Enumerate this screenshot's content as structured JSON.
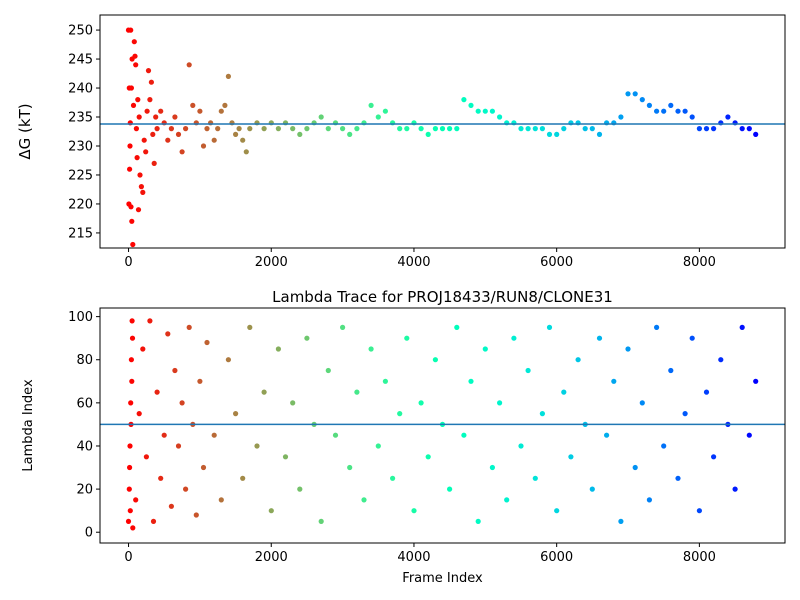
{
  "chart_data": [
    {
      "type": "scatter",
      "title": "",
      "xlabel": "",
      "ylabel": "ΔG (kT)",
      "xlim": [
        -400,
        9200
      ],
      "ylim": [
        212.4,
        252.6
      ],
      "xticks": [
        0,
        2000,
        4000,
        6000,
        8000
      ],
      "xtick_labels": [
        "0",
        "2000",
        "4000",
        "6000",
        "8000"
      ],
      "yticks": [
        215,
        220,
        225,
        230,
        235,
        240,
        245,
        250
      ],
      "ytick_labels": [
        "215",
        "220",
        "225",
        "230",
        "235",
        "240",
        "245",
        "250"
      ],
      "hline": 233.8,
      "colormap": "rainbow",
      "color_by": "frame index (red = early, violet = late)",
      "grid": false,
      "legend": "none",
      "series_points": [
        [
          0,
          250
        ],
        [
          30,
          250
        ],
        [
          10,
          240
        ],
        [
          40,
          240
        ],
        [
          20,
          230
        ],
        [
          5,
          220
        ],
        [
          35,
          219.5
        ],
        [
          50,
          245
        ],
        [
          15,
          226
        ],
        [
          45,
          217
        ],
        [
          60,
          213
        ],
        [
          25,
          234
        ],
        [
          80,
          248
        ],
        [
          90,
          245.5
        ],
        [
          100,
          244
        ],
        [
          70,
          237
        ],
        [
          110,
          233
        ],
        [
          130,
          238
        ],
        [
          150,
          235
        ],
        [
          120,
          228
        ],
        [
          160,
          225
        ],
        [
          140,
          219
        ],
        [
          180,
          223
        ],
        [
          200,
          222
        ],
        [
          220,
          231
        ],
        [
          240,
          229
        ],
        [
          260,
          236
        ],
        [
          280,
          243
        ],
        [
          300,
          238
        ],
        [
          320,
          241
        ],
        [
          340,
          232
        ],
        [
          360,
          227
        ],
        [
          380,
          235
        ],
        [
          400,
          233
        ],
        [
          450,
          236
        ],
        [
          500,
          234
        ],
        [
          550,
          231
        ],
        [
          600,
          233
        ],
        [
          650,
          235
        ],
        [
          700,
          232
        ],
        [
          750,
          229
        ],
        [
          800,
          233
        ],
        [
          850,
          244
        ],
        [
          900,
          237
        ],
        [
          950,
          234
        ],
        [
          1000,
          236
        ],
        [
          1050,
          230
        ],
        [
          1100,
          233
        ],
        [
          1150,
          234
        ],
        [
          1200,
          231
        ],
        [
          1250,
          233
        ],
        [
          1300,
          236
        ],
        [
          1350,
          237
        ],
        [
          1400,
          242
        ],
        [
          1450,
          234
        ],
        [
          1500,
          232
        ],
        [
          1550,
          233
        ],
        [
          1600,
          231
        ],
        [
          1650,
          229
        ],
        [
          1700,
          233
        ],
        [
          1800,
          234
        ],
        [
          1900,
          233
        ],
        [
          2000,
          234
        ],
        [
          2100,
          233
        ],
        [
          2200,
          234
        ],
        [
          2300,
          233
        ],
        [
          2400,
          232
        ],
        [
          2500,
          233
        ],
        [
          2600,
          234
        ],
        [
          2700,
          235
        ],
        [
          2800,
          233
        ],
        [
          2900,
          234
        ],
        [
          3000,
          233
        ],
        [
          3100,
          232
        ],
        [
          3200,
          233
        ],
        [
          3300,
          234
        ],
        [
          3400,
          237
        ],
        [
          3500,
          235
        ],
        [
          3600,
          236
        ],
        [
          3700,
          234
        ],
        [
          3800,
          233
        ],
        [
          3900,
          233
        ],
        [
          4000,
          234
        ],
        [
          4100,
          233
        ],
        [
          4200,
          232
        ],
        [
          4300,
          233
        ],
        [
          4400,
          233
        ],
        [
          4500,
          233
        ],
        [
          4600,
          233
        ],
        [
          4700,
          238
        ],
        [
          4800,
          237
        ],
        [
          4900,
          236
        ],
        [
          5000,
          236
        ],
        [
          5100,
          236
        ],
        [
          5200,
          235
        ],
        [
          5300,
          234
        ],
        [
          5400,
          234
        ],
        [
          5500,
          233
        ],
        [
          5600,
          233
        ],
        [
          5700,
          233
        ],
        [
          5800,
          233
        ],
        [
          5900,
          232
        ],
        [
          6000,
          232
        ],
        [
          6100,
          233
        ],
        [
          6200,
          234
        ],
        [
          6300,
          234
        ],
        [
          6400,
          233
        ],
        [
          6500,
          233
        ],
        [
          6600,
          232
        ],
        [
          6700,
          234
        ],
        [
          6800,
          234
        ],
        [
          6900,
          235
        ],
        [
          7000,
          239
        ],
        [
          7100,
          239
        ],
        [
          7200,
          238
        ],
        [
          7300,
          237
        ],
        [
          7400,
          236
        ],
        [
          7500,
          236
        ],
        [
          7600,
          237
        ],
        [
          7700,
          236
        ],
        [
          7800,
          236
        ],
        [
          7900,
          235
        ],
        [
          8000,
          233
        ],
        [
          8100,
          233
        ],
        [
          8200,
          233
        ],
        [
          8300,
          234
        ],
        [
          8400,
          235
        ],
        [
          8500,
          234
        ],
        [
          8600,
          233
        ],
        [
          8700,
          233
        ],
        [
          8790,
          232
        ]
      ]
    },
    {
      "type": "scatter",
      "title": "Lambda Trace for PROJ18433/RUN8/CLONE31",
      "xlabel": "Frame Index",
      "ylabel": "Lambda Index",
      "xlim": [
        -400,
        9200
      ],
      "ylim": [
        -5,
        104
      ],
      "xticks": [
        0,
        2000,
        4000,
        6000,
        8000
      ],
      "xtick_labels": [
        "0",
        "2000",
        "4000",
        "6000",
        "8000"
      ],
      "yticks": [
        0,
        20,
        40,
        60,
        80,
        100
      ],
      "ytick_labels": [
        "0",
        "20",
        "40",
        "60",
        "80",
        "100"
      ],
      "hline": 50,
      "colormap": "rainbow",
      "color_by": "frame index (red = early, violet = late)",
      "grid": false,
      "legend": "none",
      "series_points": [
        [
          0,
          5
        ],
        [
          10,
          20
        ],
        [
          20,
          40
        ],
        [
          30,
          60
        ],
        [
          40,
          80
        ],
        [
          50,
          98
        ],
        [
          15,
          30
        ],
        [
          25,
          10
        ],
        [
          35,
          50
        ],
        [
          45,
          70
        ],
        [
          55,
          90
        ],
        [
          60,
          2
        ],
        [
          100,
          15
        ],
        [
          150,
          55
        ],
        [
          200,
          85
        ],
        [
          250,
          35
        ],
        [
          300,
          98
        ],
        [
          350,
          5
        ],
        [
          400,
          65
        ],
        [
          450,
          25
        ],
        [
          500,
          45
        ],
        [
          550,
          92
        ],
        [
          600,
          12
        ],
        [
          650,
          75
        ],
        [
          700,
          40
        ],
        [
          750,
          60
        ],
        [
          800,
          20
        ],
        [
          850,
          95
        ],
        [
          900,
          50
        ],
        [
          950,
          8
        ],
        [
          1000,
          70
        ],
        [
          1050,
          30
        ],
        [
          1100,
          88
        ],
        [
          1200,
          45
        ],
        [
          1300,
          15
        ],
        [
          1400,
          80
        ],
        [
          1500,
          55
        ],
        [
          1600,
          25
        ],
        [
          1700,
          95
        ],
        [
          1800,
          40
        ],
        [
          1900,
          65
        ],
        [
          2000,
          10
        ],
        [
          2100,
          85
        ],
        [
          2200,
          35
        ],
        [
          2300,
          60
        ],
        [
          2400,
          20
        ],
        [
          2500,
          90
        ],
        [
          2600,
          50
        ],
        [
          2700,
          5
        ],
        [
          2800,
          75
        ],
        [
          2900,
          45
        ],
        [
          3000,
          95
        ],
        [
          3100,
          30
        ],
        [
          3200,
          65
        ],
        [
          3300,
          15
        ],
        [
          3400,
          85
        ],
        [
          3500,
          40
        ],
        [
          3600,
          70
        ],
        [
          3700,
          25
        ],
        [
          3800,
          55
        ],
        [
          3900,
          90
        ],
        [
          4000,
          10
        ],
        [
          4100,
          60
        ],
        [
          4200,
          35
        ],
        [
          4300,
          80
        ],
        [
          4400,
          50
        ],
        [
          4500,
          20
        ],
        [
          4600,
          95
        ],
        [
          4700,
          45
        ],
        [
          4800,
          70
        ],
        [
          4900,
          5
        ],
        [
          5000,
          85
        ],
        [
          5100,
          30
        ],
        [
          5200,
          60
        ],
        [
          5300,
          15
        ],
        [
          5400,
          90
        ],
        [
          5500,
          40
        ],
        [
          5600,
          75
        ],
        [
          5700,
          25
        ],
        [
          5800,
          55
        ],
        [
          5900,
          95
        ],
        [
          6000,
          10
        ],
        [
          6100,
          65
        ],
        [
          6200,
          35
        ],
        [
          6300,
          80
        ],
        [
          6400,
          50
        ],
        [
          6500,
          20
        ],
        [
          6600,
          90
        ],
        [
          6700,
          45
        ],
        [
          6800,
          70
        ],
        [
          6900,
          5
        ],
        [
          7000,
          85
        ],
        [
          7100,
          30
        ],
        [
          7200,
          60
        ],
        [
          7300,
          15
        ],
        [
          7400,
          95
        ],
        [
          7500,
          40
        ],
        [
          7600,
          75
        ],
        [
          7700,
          25
        ],
        [
          7800,
          55
        ],
        [
          7900,
          90
        ],
        [
          8000,
          10
        ],
        [
          8100,
          65
        ],
        [
          8200,
          35
        ],
        [
          8300,
          80
        ],
        [
          8400,
          50
        ],
        [
          8500,
          20
        ],
        [
          8600,
          95
        ],
        [
          8700,
          45
        ],
        [
          8790,
          70
        ]
      ]
    }
  ]
}
